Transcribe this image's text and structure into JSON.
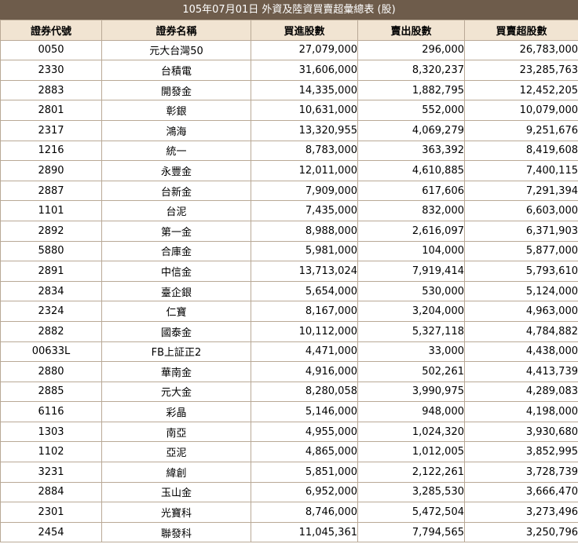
{
  "title": "105年07月01日 外資及陸資買賣超彙總表 (股)",
  "columns": [
    "證券代號",
    "證券名稱",
    "買進股數",
    "賣出股數",
    "買賣超股數"
  ],
  "rows": [
    [
      "0050",
      "元大台灣50",
      "27,079,000",
      "296,000",
      "26,783,000"
    ],
    [
      "2330",
      "台積電",
      "31,606,000",
      "8,320,237",
      "23,285,763"
    ],
    [
      "2883",
      "開發金",
      "14,335,000",
      "1,882,795",
      "12,452,205"
    ],
    [
      "2801",
      "彰銀",
      "10,631,000",
      "552,000",
      "10,079,000"
    ],
    [
      "2317",
      "鴻海",
      "13,320,955",
      "4,069,279",
      "9,251,676"
    ],
    [
      "1216",
      "統一",
      "8,783,000",
      "363,392",
      "8,419,608"
    ],
    [
      "2890",
      "永豐金",
      "12,011,000",
      "4,610,885",
      "7,400,115"
    ],
    [
      "2887",
      "台新金",
      "7,909,000",
      "617,606",
      "7,291,394"
    ],
    [
      "1101",
      "台泥",
      "7,435,000",
      "832,000",
      "6,603,000"
    ],
    [
      "2892",
      "第一金",
      "8,988,000",
      "2,616,097",
      "6,371,903"
    ],
    [
      "5880",
      "合庫金",
      "5,981,000",
      "104,000",
      "5,877,000"
    ],
    [
      "2891",
      "中信金",
      "13,713,024",
      "7,919,414",
      "5,793,610"
    ],
    [
      "2834",
      "臺企銀",
      "5,654,000",
      "530,000",
      "5,124,000"
    ],
    [
      "2324",
      "仁寶",
      "8,167,000",
      "3,204,000",
      "4,963,000"
    ],
    [
      "2882",
      "國泰金",
      "10,112,000",
      "5,327,118",
      "4,784,882"
    ],
    [
      "00633L",
      "FB上証正2",
      "4,471,000",
      "33,000",
      "4,438,000"
    ],
    [
      "2880",
      "華南金",
      "4,916,000",
      "502,261",
      "4,413,739"
    ],
    [
      "2885",
      "元大金",
      "8,280,058",
      "3,990,975",
      "4,289,083"
    ],
    [
      "6116",
      "彩晶",
      "5,146,000",
      "948,000",
      "4,198,000"
    ],
    [
      "1303",
      "南亞",
      "4,955,000",
      "1,024,320",
      "3,930,680"
    ],
    [
      "1102",
      "亞泥",
      "4,865,000",
      "1,012,005",
      "3,852,995"
    ],
    [
      "3231",
      "緯創",
      "5,851,000",
      "2,122,261",
      "3,728,739"
    ],
    [
      "2884",
      "玉山金",
      "6,952,000",
      "3,285,530",
      "3,666,470"
    ],
    [
      "2301",
      "光寶科",
      "8,746,000",
      "5,472,504",
      "3,273,496"
    ],
    [
      "2454",
      "聯發科",
      "11,045,361",
      "7,794,565",
      "3,250,796"
    ]
  ]
}
